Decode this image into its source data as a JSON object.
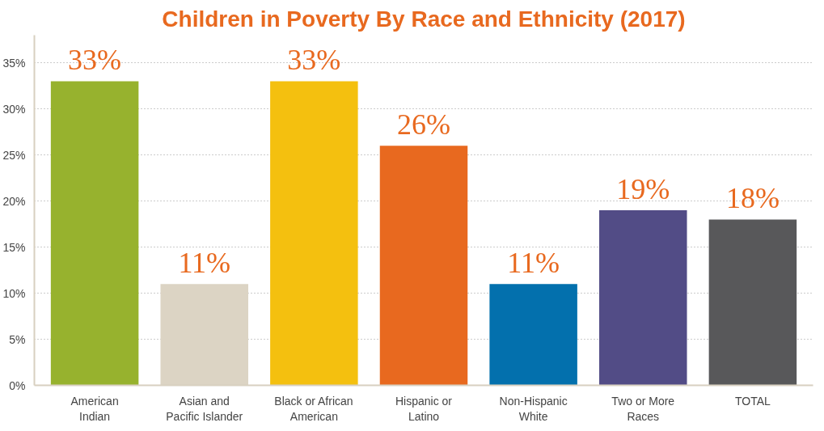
{
  "chart_data": {
    "type": "bar",
    "title": "Children in Poverty By Race and Ethnicity (2017)",
    "categories": [
      "American Indian",
      "Asian and Pacific Islander",
      "Black or African American",
      "Hispanic or Latino",
      "Non-Hispanic White",
      "Two or More Races",
      "TOTAL"
    ],
    "values": [
      33,
      11,
      33,
      26,
      11,
      19,
      18
    ],
    "colors": [
      "#97b22e",
      "#dcd4c4",
      "#f4c00f",
      "#e8691f",
      "#0370ad",
      "#524c86",
      "#58585a"
    ],
    "value_labels": [
      "33%",
      "11%",
      "33%",
      "26%",
      "11%",
      "19%",
      "18%"
    ],
    "ylim": [
      0,
      38
    ],
    "yticks": [
      {
        "value": 0,
        "label": "0%"
      },
      {
        "value": 5,
        "label": "5%"
      },
      {
        "value": 10,
        "label": "10%"
      },
      {
        "value": 15,
        "label": "15%"
      },
      {
        "value": 20,
        "label": "20%"
      },
      {
        "value": 25,
        "label": "25%"
      },
      {
        "value": 30,
        "label": "30%"
      },
      {
        "value": 35,
        "label": "35%"
      }
    ],
    "grid": "y"
  }
}
